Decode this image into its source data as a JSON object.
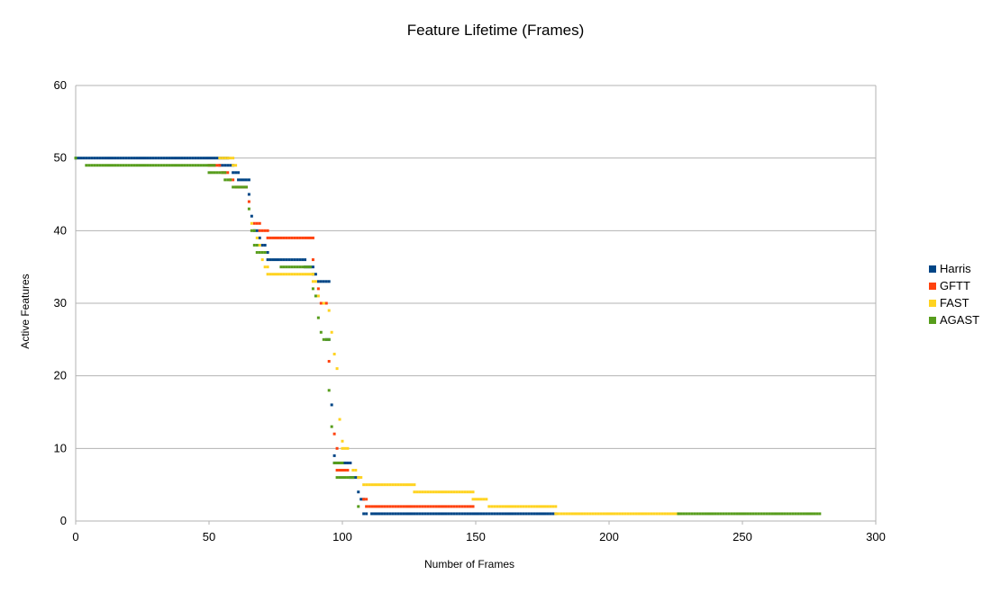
{
  "chart_data": {
    "type": "scatter",
    "title": "Feature Lifetime (Frames)",
    "xlabel": "Number of Frames",
    "ylabel": "Active Features",
    "xlim": [
      0,
      300
    ],
    "ylim": [
      0,
      60
    ],
    "xticks": [
      0,
      50,
      100,
      150,
      200,
      250,
      300
    ],
    "yticks": [
      0,
      10,
      20,
      30,
      40,
      50,
      60
    ],
    "grid": true,
    "legend_position": "right",
    "series": [
      {
        "name": "Harris",
        "color": "#004586",
        "segments": [
          [
            0,
            57,
            50
          ],
          [
            54,
            59,
            49
          ],
          [
            59,
            61,
            48
          ],
          [
            61,
            65,
            47
          ],
          [
            65,
            65,
            45
          ],
          [
            66,
            66,
            42
          ],
          [
            67,
            68,
            40
          ],
          [
            69,
            69,
            39
          ],
          [
            70,
            71,
            38
          ],
          [
            72,
            72,
            37
          ],
          [
            72,
            86,
            36
          ],
          [
            86,
            89,
            35
          ],
          [
            89,
            90,
            34
          ],
          [
            91,
            95,
            33
          ],
          [
            94,
            95,
            25
          ],
          [
            96,
            96,
            16
          ],
          [
            97,
            97,
            9
          ],
          [
            97,
            103,
            8
          ],
          [
            103,
            106,
            6
          ],
          [
            106,
            106,
            4
          ],
          [
            107,
            108,
            3
          ],
          [
            108,
            109,
            1
          ],
          [
            111,
            180,
            1
          ]
        ]
      },
      {
        "name": "GFTT",
        "color": "#ff420e",
        "segments": [
          [
            50,
            54,
            49
          ],
          [
            55,
            57,
            48
          ],
          [
            58,
            59,
            47
          ],
          [
            60,
            64,
            46
          ],
          [
            65,
            65,
            44
          ],
          [
            67,
            69,
            41
          ],
          [
            69,
            72,
            40
          ],
          [
            72,
            89,
            39
          ],
          [
            89,
            89,
            36
          ],
          [
            91,
            91,
            32
          ],
          [
            92,
            94,
            30
          ],
          [
            95,
            95,
            22
          ],
          [
            97,
            97,
            12
          ],
          [
            98,
            98,
            10
          ],
          [
            98,
            102,
            7
          ],
          [
            108,
            109,
            3
          ],
          [
            109,
            149,
            2
          ]
        ]
      },
      {
        "name": "FAST",
        "color": "#ffd320",
        "segments": [
          [
            54,
            59,
            50
          ],
          [
            59,
            60,
            49
          ],
          [
            66,
            66,
            41
          ],
          [
            68,
            68,
            39
          ],
          [
            69,
            69,
            38
          ],
          [
            70,
            70,
            36
          ],
          [
            71,
            72,
            35
          ],
          [
            72,
            89,
            34
          ],
          [
            89,
            90,
            33
          ],
          [
            91,
            91,
            31
          ],
          [
            93,
            93,
            30
          ],
          [
            95,
            95,
            29
          ],
          [
            96,
            96,
            26
          ],
          [
            97,
            97,
            23
          ],
          [
            98,
            98,
            21
          ],
          [
            99,
            99,
            14
          ],
          [
            100,
            100,
            11
          ],
          [
            100,
            102,
            10
          ],
          [
            104,
            105,
            7
          ],
          [
            106,
            107,
            6
          ],
          [
            108,
            127,
            5
          ],
          [
            127,
            149,
            4
          ],
          [
            149,
            154,
            3
          ],
          [
            155,
            180,
            2
          ],
          [
            180,
            226,
            1
          ]
        ]
      },
      {
        "name": "AGAST",
        "color": "#579d1c",
        "segments": [
          [
            0,
            0,
            50
          ],
          [
            4,
            52,
            49
          ],
          [
            50,
            56,
            48
          ],
          [
            56,
            58,
            47
          ],
          [
            59,
            64,
            46
          ],
          [
            65,
            65,
            43
          ],
          [
            66,
            67,
            40
          ],
          [
            67,
            68,
            38
          ],
          [
            68,
            71,
            37
          ],
          [
            77,
            88,
            35
          ],
          [
            89,
            89,
            32
          ],
          [
            90,
            90,
            31
          ],
          [
            91,
            91,
            28
          ],
          [
            92,
            92,
            26
          ],
          [
            93,
            95,
            25
          ],
          [
            95,
            95,
            18
          ],
          [
            96,
            96,
            13
          ],
          [
            97,
            100,
            8
          ],
          [
            98,
            104,
            6
          ],
          [
            106,
            106,
            2
          ],
          [
            226,
            279,
            1
          ]
        ]
      }
    ]
  }
}
